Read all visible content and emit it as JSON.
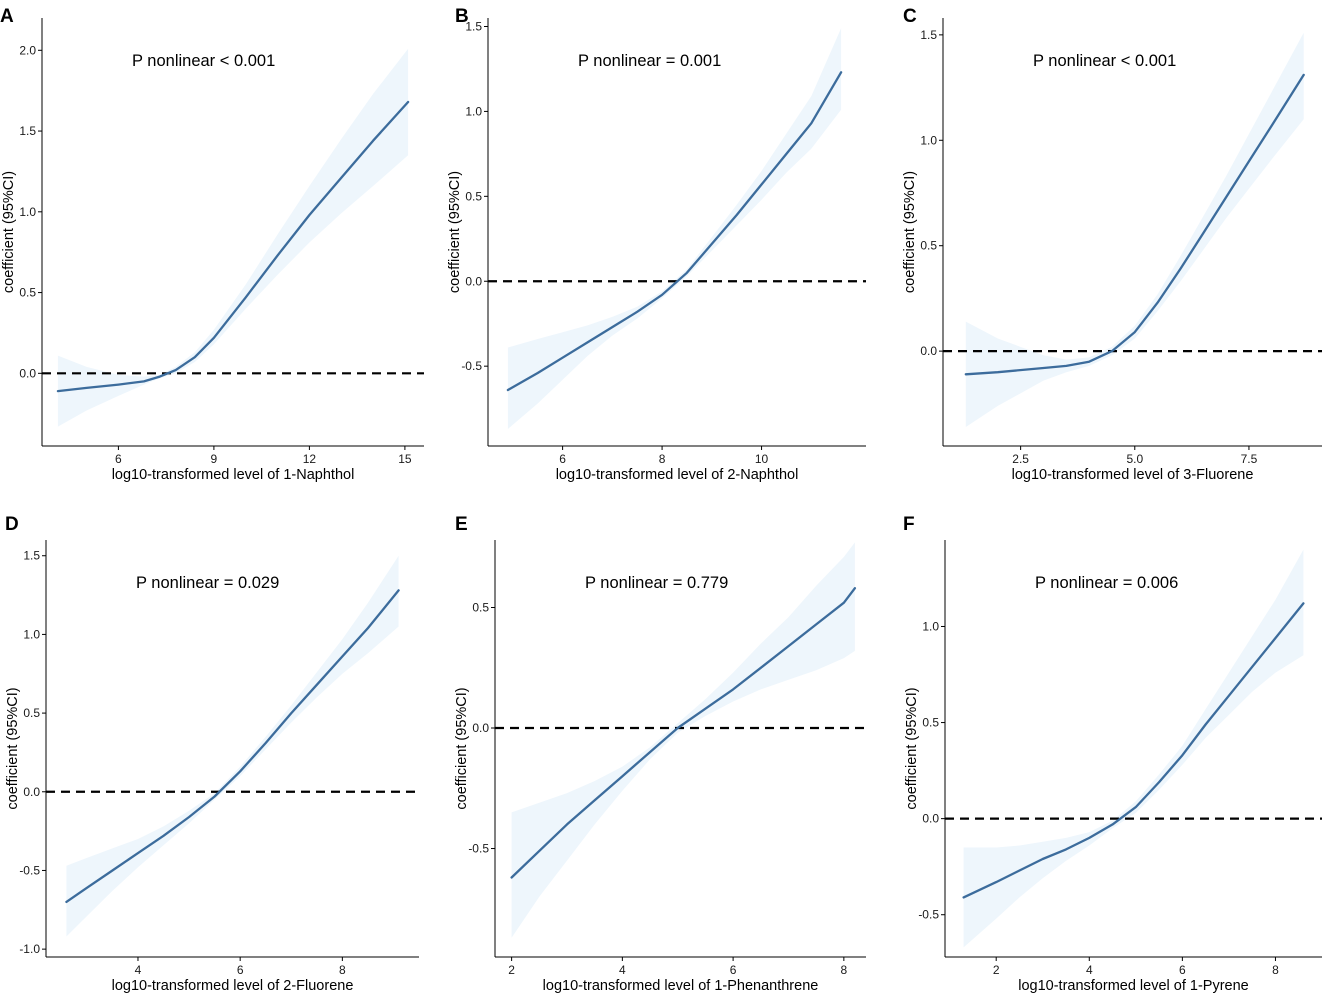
{
  "colors": {
    "line": "#3c6c9c",
    "band": "#eef6fc",
    "ref": "#000000"
  },
  "chart_data": [
    {
      "letter": "A",
      "type": "line",
      "annotation": "P nonlinear < 0.001",
      "xlabel": "log10-transformed level of 1-Naphthol",
      "ylabel": "coefficient (95%CI)",
      "xlim": [
        3.6,
        15.6
      ],
      "ylim": [
        -0.45,
        2.2
      ],
      "xticks": [
        6,
        9,
        12,
        15
      ],
      "xtick_labels": [
        "6",
        "9",
        "12",
        "15"
      ],
      "yticks": [
        0,
        0.5,
        1,
        1.5,
        2
      ],
      "ytick_labels": [
        "0.0",
        "0.5",
        "1.0",
        "1.5",
        "2.0"
      ],
      "reference_y": 0,
      "x": [
        4.1,
        5.0,
        6.0,
        6.8,
        7.3,
        7.8,
        8.4,
        9.0,
        10.0,
        11.0,
        12.0,
        13.0,
        14.0,
        15.1
      ],
      "y": [
        -0.11,
        -0.09,
        -0.07,
        -0.05,
        -0.02,
        0.02,
        0.1,
        0.22,
        0.47,
        0.73,
        0.98,
        1.21,
        1.44,
        1.68
      ],
      "lower": [
        -0.33,
        -0.23,
        -0.14,
        -0.07,
        -0.03,
        0.0,
        0.07,
        0.18,
        0.4,
        0.61,
        0.81,
        0.99,
        1.16,
        1.35
      ],
      "upper": [
        0.11,
        0.04,
        -0.01,
        -0.02,
        -0.01,
        0.04,
        0.13,
        0.27,
        0.55,
        0.86,
        1.16,
        1.45,
        1.73,
        2.01
      ]
    },
    {
      "letter": "B",
      "type": "line",
      "annotation": "P nonlinear = 0.001",
      "xlabel": "log10-transformed level of 2-Naphthol",
      "ylabel": "coefficient (95%CI)",
      "xlim": [
        4.5,
        12.1
      ],
      "ylim": [
        -0.97,
        1.55
      ],
      "xticks": [
        6,
        8,
        10
      ],
      "xtick_labels": [
        "6",
        "8",
        "10"
      ],
      "yticks": [
        -0.5,
        0,
        0.5,
        1,
        1.5
      ],
      "ytick_labels": [
        "-0.5",
        "0.0",
        "0.5",
        "1.0",
        "1.5"
      ],
      "reference_y": 0,
      "x": [
        4.9,
        5.5,
        6.0,
        6.5,
        7.0,
        7.5,
        8.0,
        8.5,
        9.0,
        9.5,
        10.0,
        10.5,
        11.0,
        11.6
      ],
      "y": [
        -0.64,
        -0.54,
        -0.45,
        -0.36,
        -0.27,
        -0.18,
        -0.08,
        0.05,
        0.22,
        0.39,
        0.57,
        0.75,
        0.93,
        1.23
      ],
      "lower": [
        -0.87,
        -0.72,
        -0.58,
        -0.44,
        -0.32,
        -0.22,
        -0.1,
        0.03,
        0.18,
        0.33,
        0.48,
        0.64,
        0.78,
        1.01
      ],
      "upper": [
        -0.39,
        -0.34,
        -0.3,
        -0.26,
        -0.21,
        -0.15,
        -0.06,
        0.07,
        0.26,
        0.45,
        0.65,
        0.87,
        1.09,
        1.49
      ]
    },
    {
      "letter": "C",
      "type": "line",
      "annotation": "P nonlinear < 0.001",
      "xlabel": "log10-transformed level of 3-Fluorene",
      "ylabel": "coefficient (95%CI)",
      "xlim": [
        0.8,
        9.1
      ],
      "ylim": [
        -0.45,
        1.58
      ],
      "xticks": [
        2.5,
        5.0,
        7.5
      ],
      "xtick_labels": [
        "2.5",
        "5.0",
        "7.5"
      ],
      "yticks": [
        0,
        0.5,
        1,
        1.5
      ],
      "ytick_labels": [
        "0.0",
        "0.5",
        "1.0",
        "1.5"
      ],
      "reference_y": 0,
      "x": [
        1.3,
        2.0,
        3.0,
        3.5,
        4.0,
        4.5,
        5.0,
        5.5,
        6.0,
        6.5,
        7.0,
        7.5,
        8.0,
        8.7
      ],
      "y": [
        -0.11,
        -0.1,
        -0.08,
        -0.07,
        -0.05,
        0.0,
        0.09,
        0.23,
        0.39,
        0.56,
        0.73,
        0.9,
        1.07,
        1.31
      ],
      "lower": [
        -0.36,
        -0.26,
        -0.14,
        -0.1,
        -0.07,
        -0.02,
        0.06,
        0.19,
        0.33,
        0.48,
        0.63,
        0.77,
        0.91,
        1.1
      ],
      "upper": [
        0.14,
        0.06,
        -0.02,
        -0.04,
        -0.03,
        0.02,
        0.12,
        0.27,
        0.45,
        0.64,
        0.83,
        1.03,
        1.23,
        1.51
      ]
    },
    {
      "letter": "D",
      "type": "line",
      "annotation": "P nonlinear = 0.029",
      "xlabel": "log10-transformed level of 2-Fluorene",
      "ylabel": "coefficient (95%CI)",
      "xlim": [
        2.2,
        9.5
      ],
      "ylim": [
        -1.05,
        1.6
      ],
      "xticks": [
        4,
        6,
        8
      ],
      "xtick_labels": [
        "4",
        "6",
        "8"
      ],
      "yticks": [
        -1,
        -0.5,
        0,
        0.5,
        1,
        1.5
      ],
      "ytick_labels": [
        "-1.0",
        "-0.5",
        "0.0",
        "0.5",
        "1.0",
        "1.5"
      ],
      "reference_y": 0,
      "x": [
        2.6,
        3.0,
        3.5,
        4.0,
        4.5,
        5.0,
        5.5,
        6.0,
        6.5,
        7.0,
        7.5,
        8.0,
        8.5,
        9.1
      ],
      "y": [
        -0.7,
        -0.61,
        -0.5,
        -0.39,
        -0.28,
        -0.16,
        -0.03,
        0.13,
        0.31,
        0.5,
        0.68,
        0.86,
        1.04,
        1.28
      ],
      "lower": [
        -0.92,
        -0.79,
        -0.63,
        -0.48,
        -0.34,
        -0.2,
        -0.05,
        0.1,
        0.27,
        0.44,
        0.6,
        0.75,
        0.88,
        1.05
      ],
      "upper": [
        -0.47,
        -0.42,
        -0.36,
        -0.3,
        -0.22,
        -0.12,
        -0.01,
        0.16,
        0.35,
        0.55,
        0.76,
        0.97,
        1.2,
        1.5
      ]
    },
    {
      "letter": "E",
      "type": "line",
      "annotation": "P nonlinear = 0.779",
      "xlabel": "log10-transformed level of 1-Phenanthrene",
      "ylabel": "coefficient (95%CI)",
      "xlim": [
        1.7,
        8.4
      ],
      "ylim": [
        -0.95,
        0.78
      ],
      "xticks": [
        2,
        4,
        6,
        8
      ],
      "xtick_labels": [
        "2",
        "4",
        "6",
        "8"
      ],
      "yticks": [
        -0.5,
        0,
        0.5
      ],
      "ytick_labels": [
        "-0.5",
        "0.0",
        "0.5"
      ],
      "reference_y": 0,
      "x": [
        2.0,
        2.5,
        3.0,
        3.5,
        4.0,
        4.5,
        5.0,
        5.5,
        6.0,
        6.5,
        7.0,
        7.5,
        8.0,
        8.2
      ],
      "y": [
        -0.62,
        -0.51,
        -0.4,
        -0.3,
        -0.2,
        -0.1,
        0.0,
        0.08,
        0.16,
        0.25,
        0.34,
        0.43,
        0.52,
        0.58
      ],
      "lower": [
        -0.87,
        -0.7,
        -0.55,
        -0.4,
        -0.26,
        -0.13,
        -0.02,
        0.05,
        0.11,
        0.16,
        0.2,
        0.24,
        0.29,
        0.32
      ],
      "upper": [
        -0.35,
        -0.31,
        -0.27,
        -0.22,
        -0.16,
        -0.08,
        0.02,
        0.12,
        0.23,
        0.35,
        0.46,
        0.59,
        0.71,
        0.77
      ]
    },
    {
      "letter": "F",
      "type": "line",
      "annotation": "P nonlinear = 0.006",
      "xlabel": "log10-transformed level of 1-Pyrene",
      "ylabel": "coefficient (95%CI)",
      "xlim": [
        0.9,
        9.0
      ],
      "ylim": [
        -0.72,
        1.45
      ],
      "xticks": [
        2,
        4,
        6,
        8
      ],
      "xtick_labels": [
        "2",
        "4",
        "6",
        "8"
      ],
      "yticks": [
        -0.5,
        0,
        0.5,
        1
      ],
      "ytick_labels": [
        "-0.5",
        "0.0",
        "0.5",
        "1.0"
      ],
      "reference_y": 0,
      "x": [
        1.3,
        2.0,
        2.5,
        3.0,
        3.5,
        4.0,
        4.5,
        5.0,
        5.5,
        6.0,
        6.5,
        7.0,
        7.5,
        8.0,
        8.6
      ],
      "y": [
        -0.41,
        -0.33,
        -0.27,
        -0.21,
        -0.16,
        -0.1,
        -0.03,
        0.06,
        0.19,
        0.33,
        0.49,
        0.64,
        0.79,
        0.94,
        1.12
      ],
      "lower": [
        -0.67,
        -0.52,
        -0.41,
        -0.31,
        -0.22,
        -0.14,
        -0.05,
        0.03,
        0.15,
        0.28,
        0.42,
        0.54,
        0.66,
        0.76,
        0.85
      ],
      "upper": [
        -0.15,
        -0.15,
        -0.14,
        -0.12,
        -0.1,
        -0.07,
        -0.01,
        0.09,
        0.23,
        0.38,
        0.57,
        0.76,
        0.95,
        1.14,
        1.4
      ]
    }
  ]
}
